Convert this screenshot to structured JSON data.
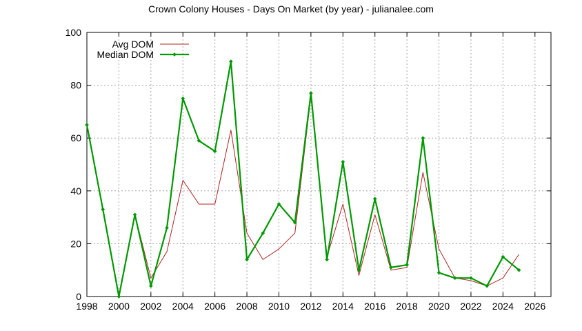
{
  "chart_data": {
    "type": "line",
    "title": "Crown Colony Houses - Days On Market (by year) - julianalee.com",
    "xlabel": "",
    "ylabel": "",
    "xlim": [
      1998,
      2027
    ],
    "ylim": [
      0,
      100
    ],
    "x_ticks": [
      1998,
      2000,
      2002,
      2004,
      2006,
      2008,
      2010,
      2012,
      2014,
      2016,
      2018,
      2020,
      2022,
      2024,
      2026
    ],
    "y_ticks": [
      0,
      20,
      40,
      60,
      80,
      100
    ],
    "grid": true,
    "legend_position": "top-left",
    "x": [
      1998,
      1999,
      2000,
      2001,
      2002,
      2003,
      2004,
      2005,
      2006,
      2007,
      2008,
      2009,
      2010,
      2011,
      2012,
      2013,
      2014,
      2015,
      2016,
      2017,
      2018,
      2019,
      2020,
      2021,
      2022,
      2023,
      2024,
      2025
    ],
    "series": [
      {
        "name": "Avg DOM",
        "color": "#b22222",
        "values": [
          65,
          33,
          0,
          31,
          7,
          17,
          44,
          35,
          35,
          63,
          24,
          14,
          18,
          24,
          76,
          15,
          35,
          8,
          31,
          10,
          11,
          47,
          18,
          7,
          6,
          4,
          7,
          16
        ]
      },
      {
        "name": "Median DOM",
        "color": "#009900",
        "values": [
          65,
          33,
          0,
          31,
          4,
          26,
          75,
          59,
          55,
          89,
          14,
          24,
          35,
          28,
          77,
          14,
          51,
          10,
          37,
          11,
          12,
          60,
          9,
          7,
          7,
          4,
          15,
          10
        ]
      }
    ]
  }
}
